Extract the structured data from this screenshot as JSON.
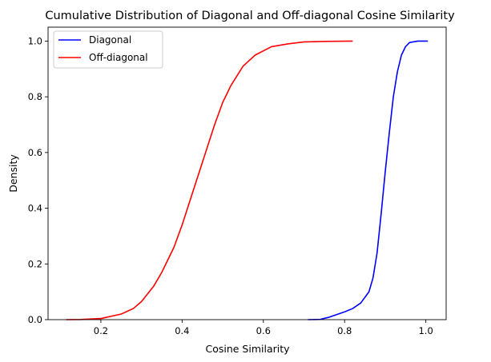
{
  "chart_data": {
    "type": "line",
    "title": "Cumulative Distribution of Diagonal and Off-diagonal Cosine Similarity",
    "xlabel": "Cosine Similarity",
    "ylabel": "Density",
    "xlim": [
      0.07,
      1.05
    ],
    "ylim": [
      0,
      1.05
    ],
    "xticks": [
      0.2,
      0.4,
      0.6,
      0.8,
      1.0
    ],
    "xtick_labels": [
      "0.2",
      "0.4",
      "0.6",
      "0.8",
      "1.0"
    ],
    "yticks": [
      0.0,
      0.2,
      0.4,
      0.6,
      0.8,
      1.0
    ],
    "ytick_labels": [
      "0.0",
      "0.2",
      "0.4",
      "0.6",
      "0.8",
      "1.0"
    ],
    "grid": false,
    "legend_position": "top-left",
    "series": [
      {
        "name": "Diagonal",
        "color": "#0000ff",
        "points": [
          [
            0.71,
            0.0
          ],
          [
            0.74,
            0.001
          ],
          [
            0.76,
            0.008
          ],
          [
            0.78,
            0.018
          ],
          [
            0.8,
            0.028
          ],
          [
            0.82,
            0.04
          ],
          [
            0.84,
            0.06
          ],
          [
            0.86,
            0.1
          ],
          [
            0.87,
            0.15
          ],
          [
            0.88,
            0.24
          ],
          [
            0.89,
            0.38
          ],
          [
            0.9,
            0.53
          ],
          [
            0.91,
            0.67
          ],
          [
            0.92,
            0.8
          ],
          [
            0.93,
            0.89
          ],
          [
            0.94,
            0.95
          ],
          [
            0.95,
            0.98
          ],
          [
            0.96,
            0.995
          ],
          [
            0.98,
            1.0
          ],
          [
            1.005,
            1.0
          ]
        ]
      },
      {
        "name": "Off-diagonal",
        "color": "#ff0000",
        "points": [
          [
            0.115,
            0.0
          ],
          [
            0.15,
            0.0005
          ],
          [
            0.2,
            0.004
          ],
          [
            0.25,
            0.02
          ],
          [
            0.28,
            0.04
          ],
          [
            0.3,
            0.065
          ],
          [
            0.33,
            0.12
          ],
          [
            0.35,
            0.17
          ],
          [
            0.38,
            0.26
          ],
          [
            0.4,
            0.34
          ],
          [
            0.42,
            0.43
          ],
          [
            0.44,
            0.52
          ],
          [
            0.46,
            0.61
          ],
          [
            0.48,
            0.7
          ],
          [
            0.5,
            0.78
          ],
          [
            0.52,
            0.84
          ],
          [
            0.55,
            0.91
          ],
          [
            0.58,
            0.95
          ],
          [
            0.62,
            0.98
          ],
          [
            0.66,
            0.99
          ],
          [
            0.7,
            0.997
          ],
          [
            0.75,
            0.999
          ],
          [
            0.82,
            1.0
          ]
        ]
      }
    ]
  }
}
